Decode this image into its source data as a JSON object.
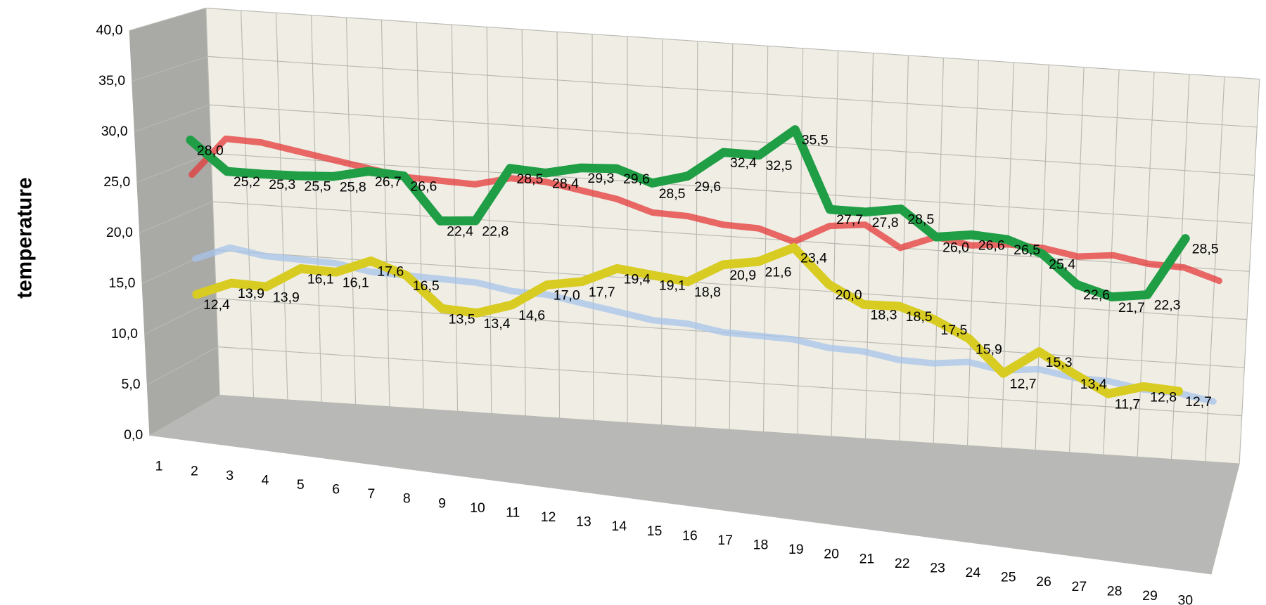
{
  "chart_data": {
    "type": "line3d",
    "y_label": "temperature",
    "categories": [
      "1",
      "2",
      "3",
      "4",
      "5",
      "6",
      "7",
      "8",
      "9",
      "10",
      "11",
      "12",
      "13",
      "14",
      "15",
      "16",
      "17",
      "18",
      "19",
      "20",
      "21",
      "22",
      "23",
      "24",
      "25",
      "26",
      "27",
      "28",
      "29",
      "30"
    ],
    "ylim": [
      0,
      40
    ],
    "yticks": [
      {
        "value": 0,
        "label": "0,0"
      },
      {
        "value": 5,
        "label": "5,0"
      },
      {
        "value": 10,
        "label": "10,0"
      },
      {
        "value": 15,
        "label": "15,0"
      },
      {
        "value": 20,
        "label": "20,0"
      },
      {
        "value": 25,
        "label": "25,0"
      },
      {
        "value": 30,
        "label": "30,0"
      },
      {
        "value": 35,
        "label": "35,0"
      },
      {
        "value": 40,
        "label": "40,0"
      }
    ],
    "grid": true,
    "series": [
      {
        "color": "#e53a3a",
        "values": [
          24.5,
          28.5,
          28.5,
          28,
          27.5,
          27,
          26.5,
          26.5,
          26.5,
          27.5,
          27.5,
          27,
          26.5,
          25.5,
          25.5,
          25,
          25,
          24,
          26,
          26.5,
          24.5,
          26,
          25.5,
          26,
          26,
          25.5,
          26,
          25.5,
          25.5,
          24.5
        ]
      },
      {
        "color": "#a7c3ea",
        "values": [
          16,
          17.5,
          17,
          17,
          17,
          16.5,
          16.5,
          16.5,
          16.5,
          16,
          16,
          15.5,
          15,
          14.5,
          14.5,
          14,
          14,
          14,
          13.5,
          13.5,
          13,
          13,
          13.5,
          13,
          13.5,
          13,
          13,
          12.5,
          12.5,
          12
        ]
      },
      {
        "color": "#1f9e45",
        "values": [
          28.0,
          25.2,
          25.3,
          25.5,
          25.8,
          26.7,
          26.6,
          22.4,
          22.8,
          28.5,
          28.4,
          29.3,
          29.6,
          28.5,
          29.6,
          32.4,
          32.5,
          35.5,
          27.7,
          27.8,
          28.5,
          26.0,
          26.6,
          26.5,
          25.4,
          22.6,
          21.7,
          22.3,
          28.5,
          null
        ],
        "value_labels": [
          "28,0",
          "25,2",
          "25,3",
          "25,5",
          "25,8",
          "26,7",
          "26,6",
          "22,4",
          "22,8",
          "28,5",
          "28,4",
          "29,3",
          "29,6",
          "28,5",
          "29,6",
          "32,4",
          "32,5",
          "35,5",
          "27,7",
          "27,8",
          "28,5",
          "26,0",
          "26,6",
          "26,5",
          "25,4",
          "22,6",
          "21,7",
          "22,3",
          "28,5",
          null
        ]
      },
      {
        "color": "#d8cc22",
        "values": [
          12.4,
          13.9,
          13.9,
          16.1,
          16.1,
          17.6,
          16.5,
          13.5,
          13.4,
          14.6,
          17.0,
          17.7,
          19.4,
          19.1,
          18.8,
          20.9,
          21.6,
          23.4,
          20.0,
          18.3,
          18.5,
          17.5,
          15.9,
          12.7,
          15.3,
          13.4,
          11.7,
          12.8,
          12.7,
          null
        ],
        "value_labels": [
          "12,4",
          "13,9",
          "13,9",
          "16,1",
          "16,1",
          "17,6",
          "16,5",
          "13,5",
          "13,4",
          "14,6",
          "17,0",
          "17,7",
          "19,4",
          "19,1",
          "18,8",
          "20,9",
          "21,6",
          "23,4",
          "20,0",
          "18,3",
          "18,5",
          "17,5",
          "15,9",
          "12,7",
          "15,3",
          "13,4",
          "11,7",
          "12,8",
          "12,7",
          null
        ]
      }
    ]
  }
}
